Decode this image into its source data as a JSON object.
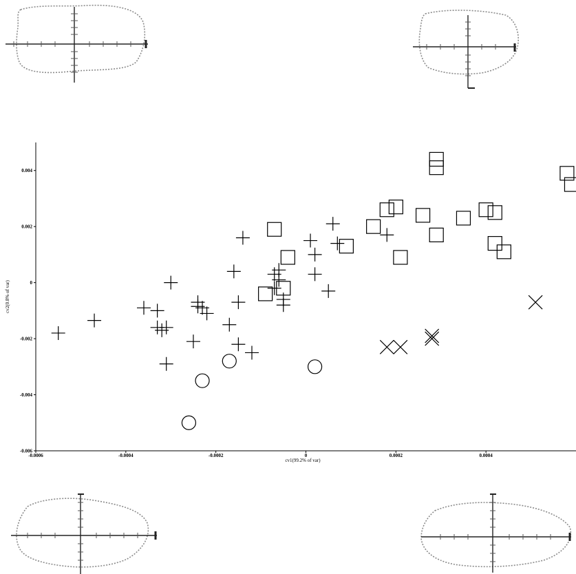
{
  "chart_data": {
    "type": "scatter",
    "title": "",
    "xlabel": "cv1(99.2% of var)",
    "ylabel": "cv2(0.8% of var)",
    "xlim": [
      -0.0006,
      0.0006
    ],
    "ylim": [
      -0.006,
      0.005
    ],
    "x_ticks": [
      "-0.0006",
      "-0.0004",
      "-0.0002",
      "0",
      "0.0002",
      "0.0004"
    ],
    "y_ticks": [
      "-0.006",
      "-0.004",
      "-0.002",
      "0",
      "0.002",
      "0.004"
    ],
    "x_tick_values": [
      -0.0006,
      -0.0004,
      -0.0002,
      0,
      0.0002,
      0.0004
    ],
    "y_tick_values": [
      -0.006,
      -0.004,
      -0.002,
      0,
      0.002,
      0.004
    ],
    "grid": false,
    "legend": "none",
    "series": [
      {
        "marker": "plus",
        "points": [
          [
            -0.00055,
            -0.0018
          ],
          [
            -0.00047,
            -0.00135
          ],
          [
            -0.00036,
            -0.0009
          ],
          [
            -0.00033,
            -0.001
          ],
          [
            -0.00033,
            -0.0016
          ],
          [
            -0.00032,
            -0.0017
          ],
          [
            -0.00031,
            -0.0016
          ],
          [
            -0.0003,
            0.0
          ],
          [
            -0.00031,
            -0.0029
          ],
          [
            -0.00025,
            -0.0021
          ],
          [
            -0.00024,
            -0.00085
          ],
          [
            -0.00024,
            -0.0007
          ],
          [
            -0.00023,
            -0.0009
          ],
          [
            -0.00022,
            -0.0011
          ],
          [
            -0.00017,
            -0.0015
          ],
          [
            -0.00016,
            0.0004
          ],
          [
            -0.00015,
            -0.0022
          ],
          [
            -0.00015,
            -0.0007
          ],
          [
            -0.00014,
            0.0016
          ],
          [
            -0.00012,
            -0.0025
          ],
          [
            -7e-05,
            0.0003
          ],
          [
            -7e-05,
            -0.0002
          ],
          [
            -6e-05,
            0.0001
          ],
          [
            -6e-05,
            0.00045
          ],
          [
            -5e-05,
            -0.0006
          ],
          [
            -5e-05,
            -0.0008
          ],
          [
            1e-05,
            0.0015
          ],
          [
            2e-05,
            0.001
          ],
          [
            2e-05,
            0.0003
          ],
          [
            5e-05,
            -0.0003
          ],
          [
            6e-05,
            0.0021
          ],
          [
            7e-05,
            0.0014
          ],
          [
            0.00018,
            0.0017
          ]
        ]
      },
      {
        "marker": "square",
        "points": [
          [
            -7e-05,
            0.0019
          ],
          [
            -4e-05,
            0.0009
          ],
          [
            -5e-05,
            -0.0002
          ],
          [
            -9e-05,
            -0.0004
          ],
          [
            9e-05,
            0.0013
          ],
          [
            0.00015,
            0.002
          ],
          [
            0.00018,
            0.0026
          ],
          [
            0.0002,
            0.0027
          ],
          [
            0.00021,
            0.0009
          ],
          [
            0.00026,
            0.0024
          ],
          [
            0.00029,
            0.0044
          ],
          [
            0.00029,
            0.0041
          ],
          [
            0.00029,
            0.0017
          ],
          [
            0.00035,
            0.0023
          ],
          [
            0.0004,
            0.0026
          ],
          [
            0.00042,
            0.0025
          ],
          [
            0.00042,
            0.0014
          ],
          [
            0.00044,
            0.0011
          ],
          [
            0.00058,
            0.0039
          ],
          [
            0.00059,
            0.0035
          ]
        ]
      },
      {
        "marker": "circle",
        "points": [
          [
            -0.00026,
            -0.005
          ],
          [
            -0.00023,
            -0.0035
          ],
          [
            -0.00017,
            -0.0028
          ],
          [
            2e-05,
            -0.003
          ]
        ]
      },
      {
        "marker": "x",
        "points": [
          [
            0.00018,
            -0.0023
          ],
          [
            0.00021,
            -0.0023
          ],
          [
            0.00028,
            -0.0019
          ],
          [
            0.00028,
            -0.002
          ],
          [
            0.00051,
            -0.0007
          ]
        ]
      }
    ]
  }
}
